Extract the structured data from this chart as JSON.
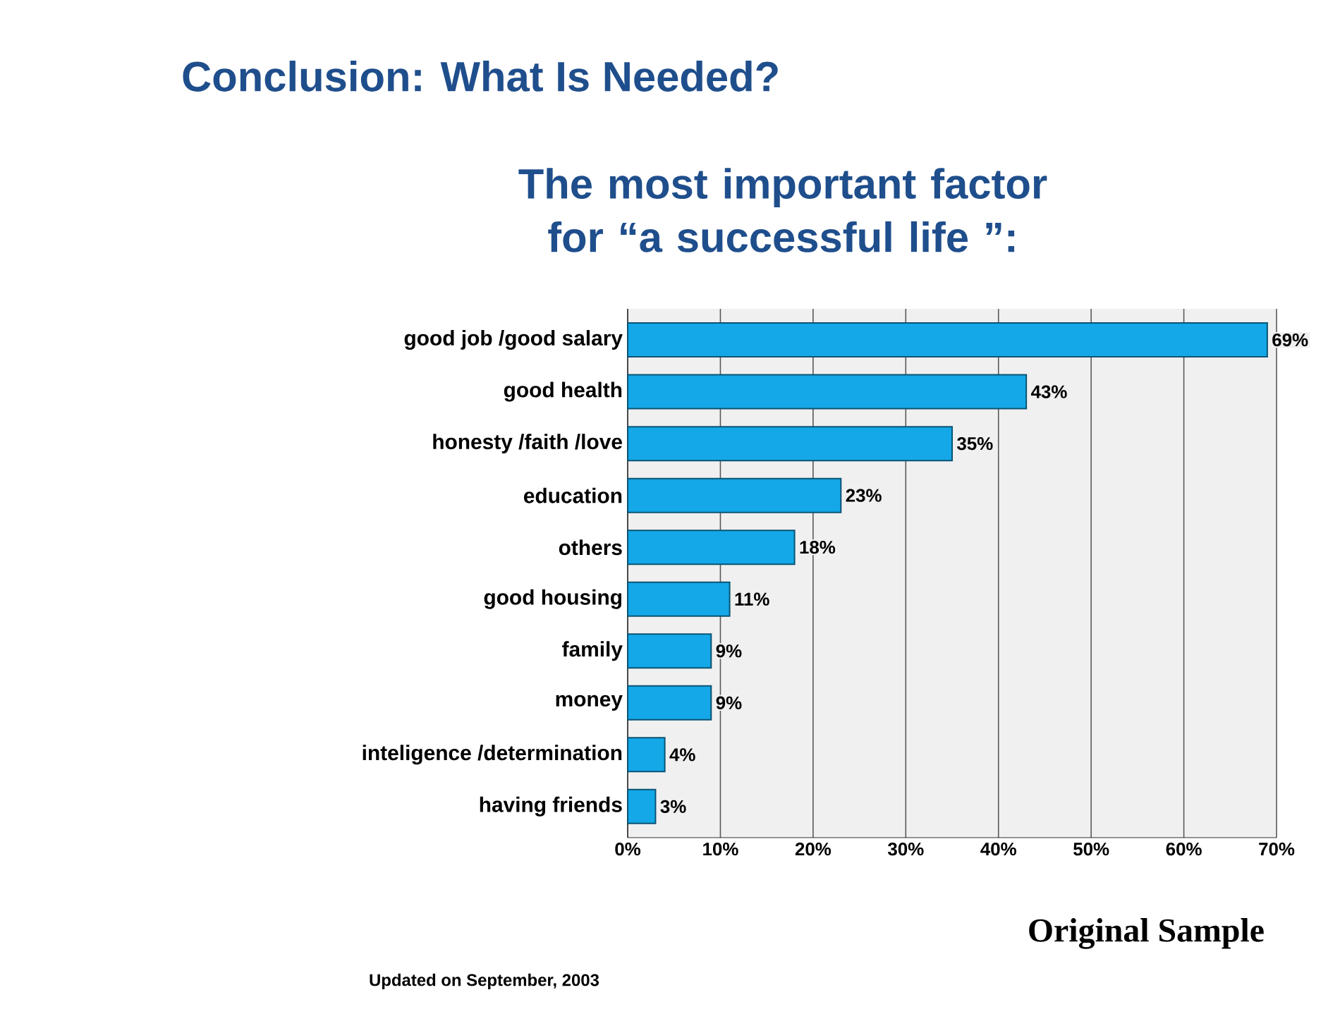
{
  "chart_data": {
    "type": "bar",
    "orientation": "horizontal",
    "title": "Conclusion: What Is Needed?",
    "subtitle": "The most important factor for “a successful life ”:",
    "categories": [
      "good job /good salary",
      "good health",
      "honesty /faith /love",
      "education",
      "others",
      "good housing",
      "family",
      "money",
      "inteligence /determination",
      "having friends"
    ],
    "values": [
      69,
      43,
      35,
      23,
      18,
      11,
      9,
      9,
      4,
      3
    ],
    "value_labels": [
      "69%",
      "43%",
      "35%",
      "23%",
      "18%",
      "11%",
      "9%",
      "9%",
      "4%",
      "3%"
    ],
    "color": "#14a8e8",
    "xlim": [
      0,
      70
    ],
    "xticks": [
      {
        "value": 0,
        "label": "0%"
      },
      {
        "value": 10,
        "label": "10%"
      },
      {
        "value": 20,
        "label": "20%"
      },
      {
        "value": 30,
        "label": "30%"
      },
      {
        "value": 40,
        "label": "40%"
      },
      {
        "value": 50,
        "label": "50%"
      },
      {
        "value": 60,
        "label": "60%"
      },
      {
        "value": 70,
        "label": "70%"
      }
    ],
    "grid": "x",
    "annotations": [
      "Original Sample",
      "Updated on September, 2003"
    ]
  }
}
